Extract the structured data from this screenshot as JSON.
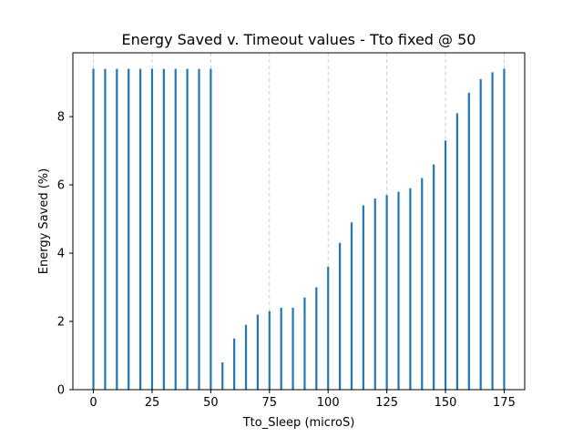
{
  "chart_data": {
    "type": "bar",
    "title": "Energy Saved v. Timeout values - Tto fixed @ 50",
    "xlabel": "Tto_Sleep (microS)",
    "ylabel": "Energy Saved (%)",
    "xlim": [
      -8.75,
      183.75
    ],
    "ylim": [
      0,
      9.87
    ],
    "x_ticks": [
      0,
      25,
      50,
      75,
      100,
      125,
      150,
      175
    ],
    "y_ticks": [
      0,
      2,
      4,
      6,
      8
    ],
    "grid": {
      "x": true,
      "y": false,
      "x_positions": [
        0,
        25,
        50,
        75,
        100,
        125,
        150,
        175
      ],
      "style": "dashed",
      "color": "#cccccc"
    },
    "bar_color": "#1f77b4",
    "x": [
      0,
      5,
      10,
      15,
      20,
      25,
      30,
      35,
      40,
      45,
      50,
      55,
      60,
      65,
      70,
      75,
      80,
      85,
      90,
      95,
      100,
      105,
      110,
      115,
      120,
      125,
      130,
      135,
      140,
      145,
      150,
      155,
      160,
      165,
      170,
      175
    ],
    "values": [
      9.4,
      9.4,
      9.4,
      9.4,
      9.4,
      9.4,
      9.4,
      9.4,
      9.4,
      9.4,
      9.4,
      0.8,
      1.5,
      1.9,
      2.2,
      2.3,
      2.4,
      2.4,
      2.7,
      3.0,
      3.6,
      4.3,
      4.9,
      5.4,
      5.6,
      5.7,
      5.8,
      5.9,
      6.2,
      6.6,
      7.3,
      8.1,
      8.7,
      9.1,
      9.3,
      9.4
    ]
  }
}
